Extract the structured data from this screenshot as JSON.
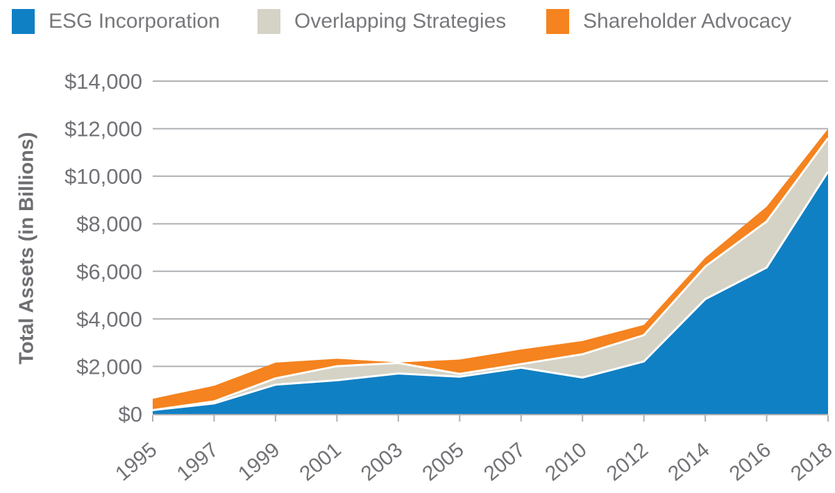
{
  "legend": {
    "items": [
      {
        "label": "ESG Incorporation",
        "color": "#1080c4"
      },
      {
        "label": "Overlapping Strategies",
        "color": "#d5d2c6"
      },
      {
        "label": "Shareholder Advocacy",
        "color": "#f5831f"
      }
    ]
  },
  "chart_data": {
    "type": "area",
    "stacked": true,
    "title": "",
    "xlabel": "",
    "ylabel": "Total Assets (in Billions)",
    "categories": [
      "1995",
      "1997",
      "1999",
      "2001",
      "2003",
      "2005",
      "2007",
      "2010",
      "2012",
      "2014",
      "2016",
      "2018"
    ],
    "series": [
      {
        "name": "ESG Incorporation",
        "color": "#1080c4",
        "values": [
          162,
          445,
          1232,
          1418,
          1702,
          1568,
          1947,
          1531,
          2208,
          4830,
          6160,
          10195
        ]
      },
      {
        "name": "Overlapping Strategies",
        "color": "#d5d2c6",
        "values": [
          0,
          84,
          265,
          592,
          441,
          117,
          151,
          981,
          1106,
          1370,
          1940,
          1405
        ]
      },
      {
        "name": "Shareholder Advocacy",
        "color": "#f5831f",
        "values": [
          477,
          656,
          662,
          313,
          21,
          605,
          613,
          557,
          430,
          372,
          620,
          395
        ]
      }
    ],
    "stacked_totals": [
      639,
      1185,
      2159,
      2323,
      2164,
      2290,
      2711,
      3069,
      3744,
      6572,
      8720,
      11995
    ],
    "ylim": [
      0,
      14000
    ],
    "y_tick_values": [
      0,
      2000,
      4000,
      6000,
      8000,
      10000,
      12000,
      14000
    ],
    "y_tick_labels": [
      "$0",
      "$2,000",
      "$4,000",
      "$6,000",
      "$8,000",
      "$10,000",
      "$12,000",
      "$14,000"
    ],
    "grid": true,
    "legend_position": "top",
    "x_label_rotation_deg": -40
  },
  "colors": {
    "background": "#ffffff",
    "grid": "#aeb0b3",
    "axis_text": "#717276",
    "legend_text": "#77787b",
    "band_separator": "#ffffff"
  }
}
